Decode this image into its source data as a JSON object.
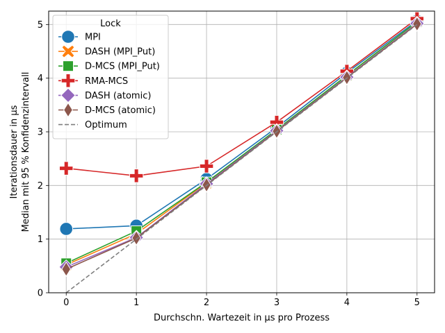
{
  "chart_data": {
    "type": "line",
    "title": "",
    "xlabel": "Durchschn. Wartezeit in µs pro Prozess",
    "ylabel_lines": [
      "Iterationsdauer in µs",
      "Median mit 95 % Konfidenzintervall"
    ],
    "x": [
      0,
      1,
      2,
      3,
      4,
      5
    ],
    "xlim": [
      -0.25,
      5.25
    ],
    "ylim": [
      0,
      5.25
    ],
    "xticks": [
      0,
      1,
      2,
      3,
      4,
      5
    ],
    "yticks": [
      0,
      1,
      2,
      3,
      4,
      5
    ],
    "grid": true,
    "legend": {
      "title": "Lock",
      "placement": "top-left"
    },
    "series": [
      {
        "name": "MPI",
        "color": "#1f77b4",
        "marker": "circle",
        "dashed": false,
        "values": [
          1.19,
          1.25,
          2.12,
          3.08,
          4.1,
          5.07
        ]
      },
      {
        "name": "DASH (MPI_Put)",
        "color": "#ff7f0e",
        "marker": "x-filled",
        "dashed": false,
        "values": [
          0.52,
          1.1,
          2.05,
          3.04,
          4.05,
          5.05
        ]
      },
      {
        "name": "D-MCS (MPI_Put)",
        "color": "#2ca02c",
        "marker": "square",
        "dashed": false,
        "values": [
          0.55,
          1.15,
          2.06,
          3.04,
          4.05,
          5.05
        ]
      },
      {
        "name": "RMA-MCS",
        "color": "#d62728",
        "marker": "plus-filled",
        "dashed": false,
        "values": [
          2.32,
          2.18,
          2.36,
          3.18,
          4.13,
          5.11
        ]
      },
      {
        "name": "DASH (atomic)",
        "color": "#9467bd",
        "marker": "diamond",
        "dashed": false,
        "values": [
          0.48,
          1.03,
          2.03,
          3.02,
          4.02,
          5.02
        ]
      },
      {
        "name": "D-MCS (atomic)",
        "color": "#8c564b",
        "marker": "thin-diamond",
        "dashed": false,
        "values": [
          0.44,
          1.02,
          2.01,
          3.01,
          4.01,
          5.01
        ]
      },
      {
        "name": "Optimum",
        "color": "#7f7f7f",
        "marker": "none",
        "dashed": true,
        "values": [
          0,
          1,
          2,
          3,
          4,
          5
        ]
      }
    ]
  }
}
